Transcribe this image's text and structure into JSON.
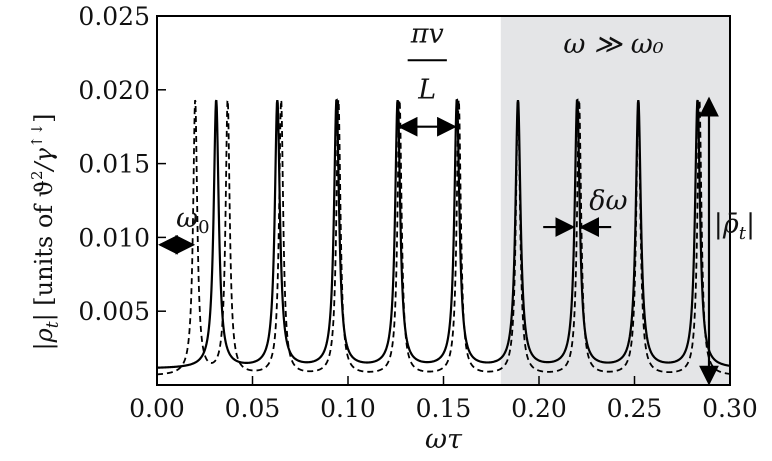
{
  "chart_data": {
    "type": "line",
    "title": "",
    "xlabel": "ωτ",
    "ylabel": "|ρ_t|  [units of ϑ²/γ↑↓]",
    "ylabel_pre": "|ρ",
    "ylabel_sub": "t",
    "ylabel_post": "|  [units of ϑ",
    "ylabel_sup2": "2",
    "ylabel_mid": "/γ",
    "ylabel_sup": "↑↓",
    "ylabel_end": "]",
    "xlim": [
      0.0,
      0.3
    ],
    "ylim": [
      0.0,
      0.025
    ],
    "grid": false,
    "x_ticks": [
      "0.00",
      "0.05",
      "0.10",
      "0.15",
      "0.20",
      "0.25",
      "0.30"
    ],
    "x_tick_values": [
      0.0,
      0.05,
      0.1,
      0.15,
      0.2,
      0.25,
      0.3
    ],
    "y_ticks": [
      "0.005",
      "0.010",
      "0.015",
      "0.020",
      "0.025"
    ],
    "y_tick_values": [
      0.005,
      0.01,
      0.015,
      0.02,
      0.025
    ],
    "shaded_region": {
      "x_start": 0.18,
      "x_end": 0.3,
      "label": "ω ≫ ω₀",
      "color": "#e4e5e7"
    },
    "series": [
      {
        "name": "solid",
        "style": "solid",
        "peak_height": 0.0193,
        "peaks": [
          0.031,
          0.063,
          0.094,
          0.126,
          0.157,
          0.189,
          0.22,
          0.252,
          0.283
        ],
        "baseline": 0.0011
      },
      {
        "name": "dashed",
        "style": "dashed",
        "peak_height": 0.0193,
        "peaks": [
          0.02,
          0.037,
          0.065,
          0.095,
          0.127,
          0.158,
          0.189,
          0.221,
          0.252,
          0.284
        ],
        "baseline": 0.0006
      }
    ],
    "annotations": {
      "omega0": "ω",
      "omega0_sub": "0",
      "pi_v": "πv",
      "L": "L",
      "delta_omega": "δω",
      "rho_bar_pre": "|ρ̄",
      "rho_bar_sub": "t",
      "rho_bar_post": "|",
      "region_label": "ω ≫ ω₀"
    }
  }
}
